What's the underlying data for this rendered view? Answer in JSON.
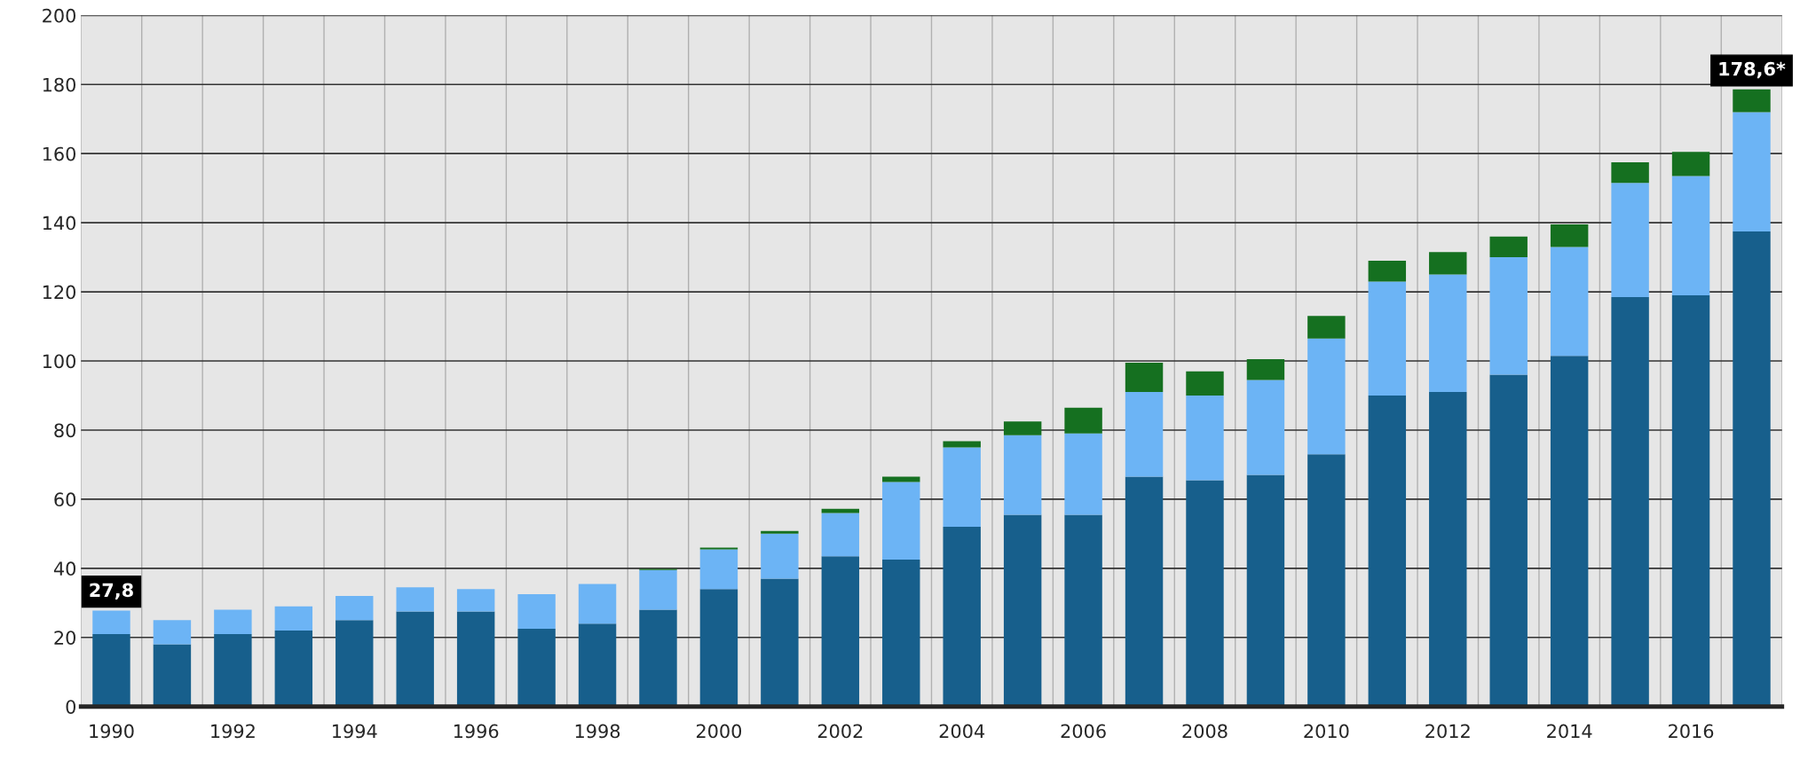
{
  "chart_data": {
    "type": "bar",
    "stacked": true,
    "categories": [
      "1990",
      null,
      "1992",
      null,
      "1994",
      null,
      "1996",
      null,
      "1998",
      null,
      "2000",
      null,
      "2002",
      null,
      "2004",
      null,
      "2006",
      null,
      "2008",
      null,
      "2010",
      null,
      "2012",
      null,
      "2014",
      null,
      "2016",
      null
    ],
    "series": [
      {
        "color": "#175f8c",
        "values": [
          21,
          18,
          21,
          22,
          25,
          27.5,
          27.5,
          22.5,
          24,
          28,
          34,
          37,
          43.5,
          42.5,
          52,
          55.5,
          55.5,
          66.5,
          65.5,
          67,
          73,
          90,
          91,
          96,
          101.5,
          118.5,
          119,
          137.5
        ]
      },
      {
        "color": "#6cb4f5",
        "values": [
          6.8,
          7,
          7,
          7,
          7,
          7,
          6.5,
          10,
          11.5,
          11.5,
          11.5,
          13,
          12.5,
          22.5,
          23,
          23,
          23.5,
          24.5,
          24.5,
          27.5,
          33.5,
          33,
          34,
          34,
          31.5,
          33,
          34.5,
          34.5
        ]
      },
      {
        "color": "#157020",
        "values": [
          0,
          0,
          0,
          0,
          0,
          0,
          0,
          0,
          0,
          0.3,
          0.5,
          0.8,
          1.2,
          1.5,
          1.8,
          4,
          7.5,
          8.5,
          7,
          6,
          6.5,
          6,
          6.5,
          6,
          6.5,
          6,
          7,
          6.6
        ]
      }
    ],
    "totals": [
      "27,8",
      null,
      null,
      null,
      null,
      null,
      null,
      null,
      null,
      null,
      null,
      null,
      null,
      null,
      null,
      null,
      null,
      null,
      null,
      null,
      null,
      null,
      null,
      null,
      null,
      null,
      null,
      "178,6*"
    ],
    "ylim": [
      0,
      200
    ],
    "yticks": [
      0,
      20,
      40,
      60,
      80,
      100,
      120,
      140,
      160,
      180,
      200
    ],
    "grid": true
  }
}
